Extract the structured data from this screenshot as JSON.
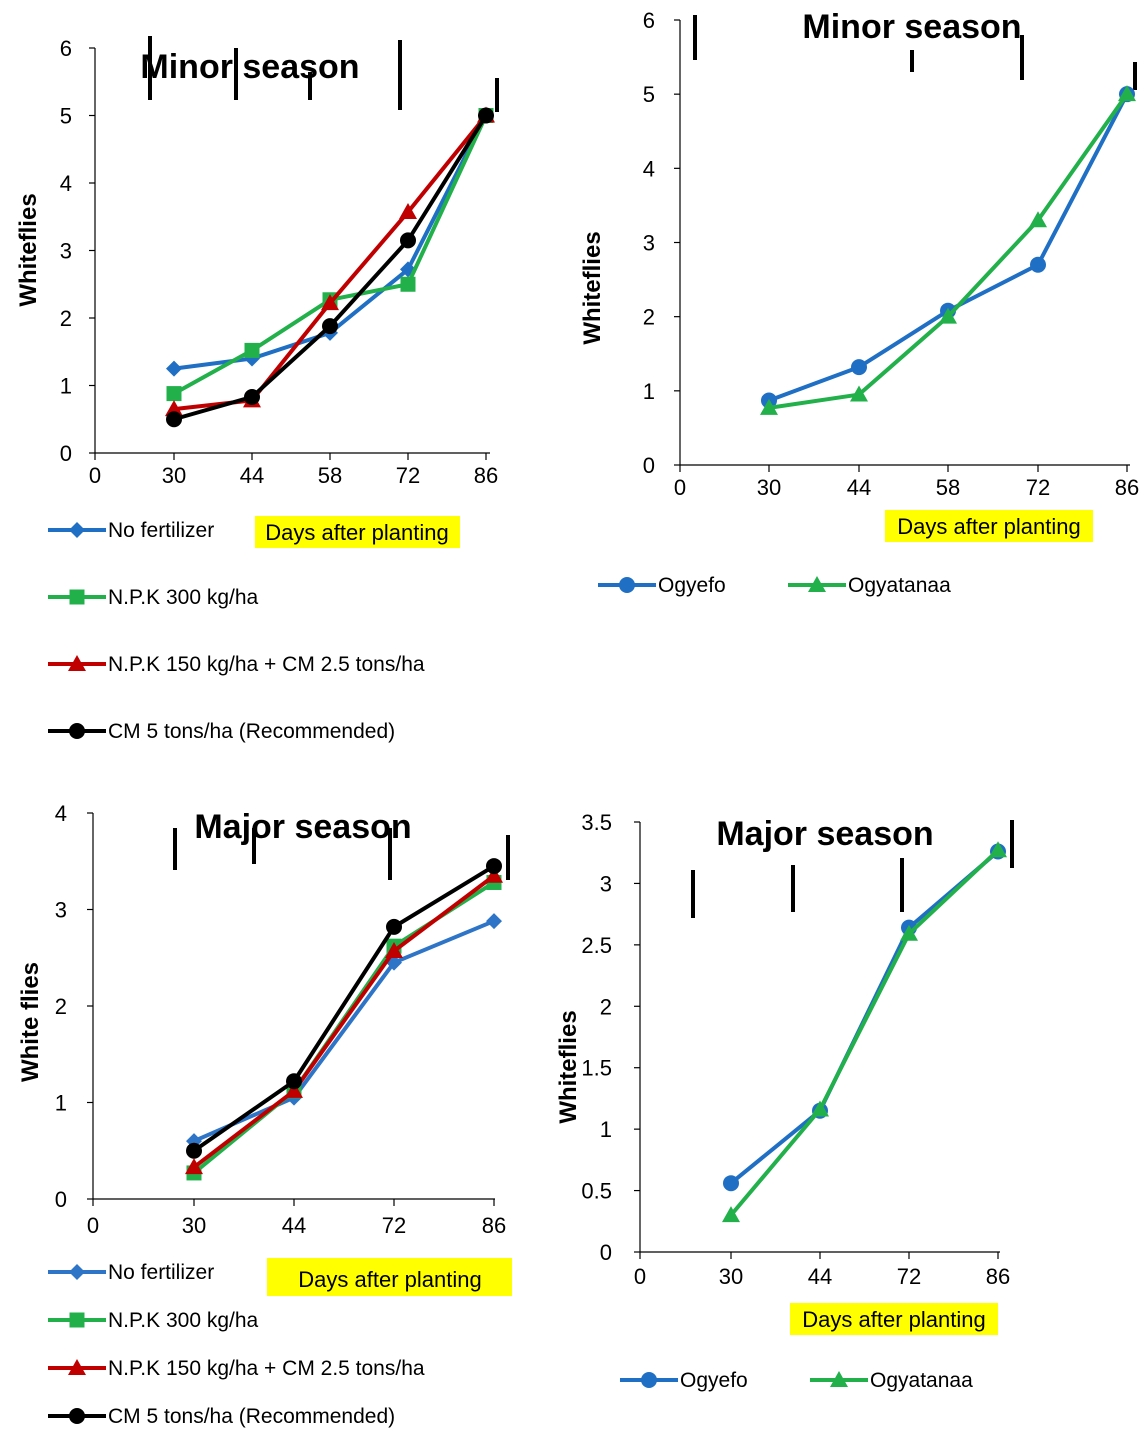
{
  "chart_data": [
    {
      "id": "tl",
      "type": "line",
      "title": "Minor season",
      "ylabel": "Whiteflies",
      "xlabel": "Days after planting",
      "x_ticks": [
        "0",
        "30",
        "44",
        "58",
        "72",
        "86"
      ],
      "y_ticks": [
        "0",
        "1",
        "2",
        "3",
        "4",
        "5",
        "6"
      ],
      "ylim": [
        0,
        6
      ],
      "categories": [
        "30",
        "44",
        "58",
        "72",
        "86"
      ],
      "series": [
        {
          "name": "No fertilizer",
          "color": "#1f6fc4",
          "marker": "diamond",
          "values": [
            1.25,
            1.4,
            1.78,
            2.72,
            5.0
          ]
        },
        {
          "name": "N.P.K 300 kg/ha",
          "color": "#22b04b",
          "marker": "square",
          "values": [
            0.88,
            1.52,
            2.27,
            2.5,
            5.0
          ]
        },
        {
          "name": "N.P.K 150 kg/ha  +  CM 2.5 tons/ha",
          "color": "#c00000",
          "marker": "triangle",
          "values": [
            0.65,
            0.78,
            2.22,
            3.57,
            5.0
          ]
        },
        {
          "name": "CM 5 tons/ha  (Recommended)",
          "color": "#000000",
          "marker": "circle",
          "values": [
            0.5,
            0.83,
            1.88,
            3.15,
            5.0
          ]
        }
      ]
    },
    {
      "id": "tr",
      "type": "line",
      "title": "Minor season",
      "ylabel": "Whiteflies",
      "xlabel": "Days after planting",
      "x_ticks": [
        "0",
        "30",
        "44",
        "58",
        "72",
        "86"
      ],
      "y_ticks": [
        "0",
        "1",
        "2",
        "3",
        "4",
        "5",
        "6"
      ],
      "ylim": [
        0,
        6
      ],
      "categories": [
        "30",
        "44",
        "58",
        "72",
        "86"
      ],
      "series": [
        {
          "name": "Ogyefo",
          "color": "#1f6fc4",
          "marker": "circle",
          "values": [
            0.87,
            1.32,
            2.08,
            2.7,
            5.0
          ]
        },
        {
          "name": "Ogyatanaa",
          "color": "#22b04b",
          "marker": "triangle",
          "values": [
            0.77,
            0.95,
            2.0,
            3.3,
            5.0
          ]
        }
      ]
    },
    {
      "id": "bl",
      "type": "line",
      "title": "Major season",
      "ylabel": "White flies",
      "xlabel": "Days after planting",
      "x_ticks": [
        "0",
        "30",
        "44",
        "72",
        "86"
      ],
      "y_ticks": [
        "0",
        "1",
        "2",
        "3",
        "4"
      ],
      "ylim": [
        0,
        4
      ],
      "categories": [
        "30",
        "44",
        "72",
        "86"
      ],
      "series": [
        {
          "name": "No fertilizer",
          "color": "#2e75c8",
          "marker": "diamond",
          "values": [
            0.6,
            1.05,
            2.45,
            2.88
          ]
        },
        {
          "name": "N.P.K 300 kg/ha",
          "color": "#22b04b",
          "marker": "square",
          "values": [
            0.27,
            1.12,
            2.62,
            3.28
          ]
        },
        {
          "name": "N.P.K 150 kg/ha  +  CM 2.5 tons/ha",
          "color": "#c00000",
          "marker": "triangle",
          "values": [
            0.33,
            1.12,
            2.57,
            3.35
          ]
        },
        {
          "name": "CM 5 tons/ha  (Recommended)",
          "color": "#000000",
          "marker": "circle",
          "values": [
            0.5,
            1.22,
            2.82,
            3.45
          ]
        }
      ]
    },
    {
      "id": "br",
      "type": "line",
      "title": "Major season",
      "ylabel": "Whiteflies",
      "xlabel": "Days after planting",
      "x_ticks": [
        "0",
        "30",
        "44",
        "72",
        "86"
      ],
      "y_ticks": [
        "0",
        "0.5",
        "1",
        "1.5",
        "2",
        "2.5",
        "3",
        "3.5"
      ],
      "ylim": [
        0,
        3.5
      ],
      "categories": [
        "30",
        "44",
        "72",
        "86"
      ],
      "series": [
        {
          "name": "Ogyefo",
          "color": "#1f6fc4",
          "marker": "circle",
          "values": [
            0.56,
            1.15,
            2.64,
            3.26
          ]
        },
        {
          "name": "Ogyatanaa",
          "color": "#22b04b",
          "marker": "triangle",
          "values": [
            0.3,
            1.16,
            2.59,
            3.27
          ]
        }
      ]
    }
  ]
}
